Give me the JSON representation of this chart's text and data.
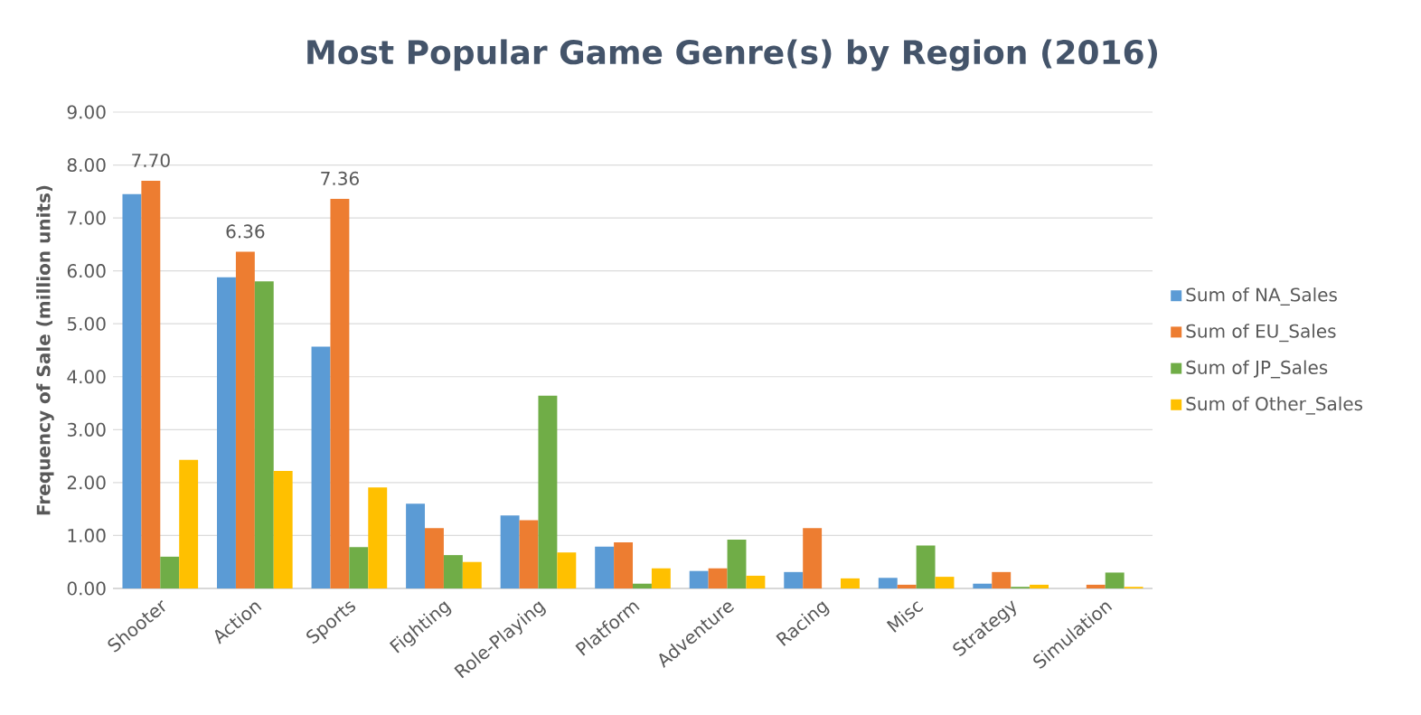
{
  "chart_data": {
    "type": "bar",
    "title": "Most Popular Game Genre(s) by Region (2016)",
    "ylabel": "Frequency of Sale (million units)",
    "categories": [
      "Shooter",
      "Action",
      "Sports",
      "Fighting",
      "Role-Playing",
      "Platform",
      "Adventure",
      "Racing",
      "Misc",
      "Strategy",
      "Simulation"
    ],
    "series": [
      {
        "name": "Sum of NA_Sales",
        "color": "#5b9bd5",
        "values": [
          7.45,
          5.88,
          4.57,
          1.6,
          1.38,
          0.79,
          0.33,
          0.31,
          0.2,
          0.09,
          0
        ]
      },
      {
        "name": "Sum of EU_Sales",
        "color": "#ed7d31",
        "values": [
          7.7,
          6.36,
          7.36,
          1.14,
          1.29,
          0.87,
          0.38,
          1.14,
          0.07,
          0.31,
          0.07
        ],
        "value_labels": [
          "7.70",
          "6.36",
          "7.36",
          null,
          null,
          null,
          null,
          null,
          null,
          null,
          null
        ]
      },
      {
        "name": "Sum of JP_Sales",
        "color": "#70ad47",
        "values": [
          0.6,
          5.8,
          0.78,
          0.63,
          3.64,
          0.09,
          0.92,
          0,
          0.81,
          0.03,
          0.3
        ]
      },
      {
        "name": "Sum of Other_Sales",
        "color": "#ffc000",
        "values": [
          2.43,
          2.22,
          1.91,
          0.5,
          0.68,
          0.38,
          0.24,
          0.19,
          0.22,
          0.07,
          0.03
        ]
      }
    ],
    "ylim": [
      0,
      9
    ],
    "yticks": [
      {
        "value": 0,
        "label": "0.00"
      },
      {
        "value": 1,
        "label": "1.00"
      },
      {
        "value": 2,
        "label": "2.00"
      },
      {
        "value": 3,
        "label": "3.00"
      },
      {
        "value": 4,
        "label": "4.00"
      },
      {
        "value": 5,
        "label": "5.00"
      },
      {
        "value": 6,
        "label": "6.00"
      },
      {
        "value": 7,
        "label": "7.00"
      },
      {
        "value": 8,
        "label": "8.00"
      },
      {
        "value": 9,
        "label": "9.00"
      }
    ],
    "grid": "y",
    "legend": "right"
  }
}
